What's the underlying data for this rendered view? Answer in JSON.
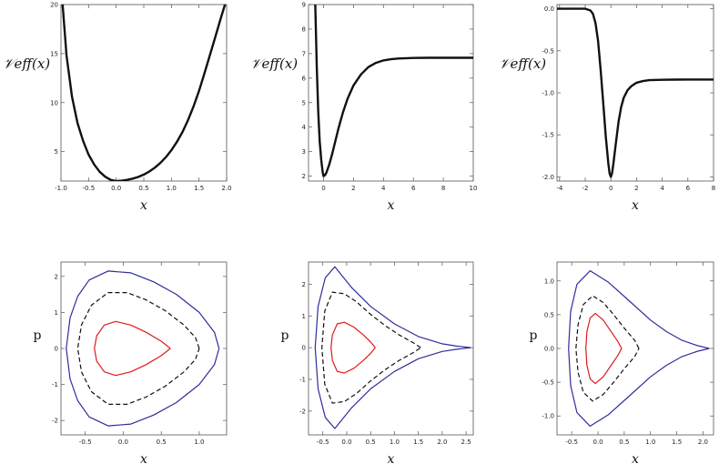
{
  "chart_data": [
    {
      "type": "line",
      "ylabel": "𝒱eff(x)",
      "xlabel": "x",
      "xlim": [
        -1.0,
        2.0
      ],
      "ylim": [
        2.0,
        20.0
      ],
      "xticks": [
        "-1.0",
        "-0.5",
        "0.0",
        "0.5",
        "1.0",
        "1.5",
        "2.0"
      ],
      "xtick_values": [
        -1.0,
        -0.5,
        0.0,
        0.5,
        1.0,
        1.5,
        2.0
      ],
      "yticks": [
        "5",
        "10",
        "15",
        "20"
      ],
      "ytick_values": [
        5,
        10,
        15,
        20
      ],
      "series": [
        {
          "color": "#111111",
          "x": [
            -0.97,
            -0.9,
            -0.8,
            -0.7,
            -0.6,
            -0.5,
            -0.4,
            -0.3,
            -0.2,
            -0.1,
            0.0,
            0.1,
            0.2,
            0.3,
            0.4,
            0.5,
            0.6,
            0.7,
            0.8,
            0.9,
            1.0,
            1.1,
            1.2,
            1.3,
            1.4,
            1.5,
            1.6,
            1.7,
            1.8,
            1.9,
            1.97
          ],
          "y": [
            20.0,
            14.8,
            10.6,
            7.9,
            6.1,
            4.7,
            3.7,
            2.95,
            2.45,
            2.12,
            2.0,
            2.04,
            2.12,
            2.25,
            2.42,
            2.66,
            2.97,
            3.36,
            3.85,
            4.44,
            5.15,
            6.0,
            7.0,
            8.2,
            9.6,
            11.2,
            13.0,
            14.9,
            16.8,
            18.7,
            20.0
          ]
        }
      ]
    },
    {
      "type": "line",
      "ylabel": "𝒱eff(x)",
      "xlabel": "x",
      "xlim": [
        -1.0,
        10.0
      ],
      "ylim": [
        1.8,
        9.0
      ],
      "xticks": [
        "0",
        "2",
        "4",
        "6",
        "8",
        "10"
      ],
      "xtick_values": [
        0,
        2,
        4,
        6,
        8,
        10
      ],
      "yticks": [
        "2",
        "3",
        "4",
        "5",
        "6",
        "7",
        "8",
        "9"
      ],
      "ytick_values": [
        2,
        3,
        4,
        5,
        6,
        7,
        8,
        9
      ],
      "series": [
        {
          "color": "#111111",
          "x": [
            -0.55,
            -0.45,
            -0.35,
            -0.25,
            -0.15,
            -0.05,
            0.0,
            0.1,
            0.2,
            0.4,
            0.6,
            0.8,
            1.0,
            1.3,
            1.6,
            2.0,
            2.5,
            3.0,
            3.5,
            4.0,
            4.5,
            5.0,
            6.0,
            7.0,
            8.0,
            9.0,
            10.0
          ],
          "y": [
            9.0,
            6.4,
            4.6,
            3.4,
            2.65,
            2.15,
            2.0,
            2.04,
            2.15,
            2.5,
            2.95,
            3.45,
            3.95,
            4.6,
            5.15,
            5.7,
            6.15,
            6.45,
            6.62,
            6.72,
            6.77,
            6.8,
            6.82,
            6.83,
            6.83,
            6.83,
            6.83
          ]
        }
      ]
    },
    {
      "type": "line",
      "ylabel": "𝒱eff(x)",
      "xlabel": "x",
      "xlim": [
        -4.2,
        8.0
      ],
      "ylim": [
        -2.05,
        0.05
      ],
      "xticks": [
        "-4",
        "-2",
        "0",
        "2",
        "4",
        "6",
        "8"
      ],
      "xtick_values": [
        -4,
        -2,
        0,
        2,
        4,
        6,
        8
      ],
      "yticks": [
        "0.0",
        "-0.5",
        "-1.0",
        "-1.5",
        "-2.0"
      ],
      "ytick_values": [
        0.0,
        -0.5,
        -1.0,
        -1.5,
        -2.0
      ],
      "series": [
        {
          "color": "#111111",
          "x": [
            -4.2,
            -3.0,
            -2.0,
            -1.6,
            -1.4,
            -1.2,
            -1.0,
            -0.8,
            -0.6,
            -0.4,
            -0.2,
            -0.1,
            0.0,
            0.1,
            0.2,
            0.4,
            0.6,
            0.8,
            1.0,
            1.3,
            1.6,
            2.0,
            2.5,
            3.0,
            4.0,
            5.0,
            6.0,
            7.0,
            8.0
          ],
          "y": [
            0.0,
            0.0,
            0.0,
            -0.02,
            -0.06,
            -0.17,
            -0.38,
            -0.72,
            -1.12,
            -1.52,
            -1.84,
            -1.96,
            -2.0,
            -1.95,
            -1.84,
            -1.58,
            -1.34,
            -1.17,
            -1.06,
            -0.97,
            -0.92,
            -0.88,
            -0.86,
            -0.85,
            -0.845,
            -0.843,
            -0.842,
            -0.842,
            -0.842
          ]
        }
      ]
    },
    {
      "type": "line",
      "ylabel": "p",
      "xlabel": "x",
      "xlim": [
        -0.82,
        1.36
      ],
      "ylim": [
        -2.4,
        2.4
      ],
      "xticks": [
        "-0.5",
        "0.0",
        "0.5",
        "1.0"
      ],
      "xtick_values": [
        -0.5,
        0.0,
        0.5,
        1.0
      ],
      "yticks": [
        "2",
        "1",
        "0",
        "-1",
        "-2"
      ],
      "ytick_values": [
        2,
        1,
        0,
        -1,
        -2
      ],
      "series": [
        {
          "color": "#2e2e9a",
          "style": "solid",
          "x": [
            1.26,
            1.2,
            1.0,
            0.7,
            0.4,
            0.1,
            -0.2,
            -0.45,
            -0.6,
            -0.7,
            -0.75,
            -0.7,
            -0.6,
            -0.45,
            -0.2,
            0.1,
            0.4,
            0.7,
            1.0,
            1.2,
            1.26
          ],
          "y": [
            0.0,
            0.45,
            1.0,
            1.5,
            1.85,
            2.1,
            2.15,
            1.9,
            1.45,
            0.85,
            0.0,
            -0.85,
            -1.45,
            -1.9,
            -2.15,
            -2.1,
            -1.85,
            -1.5,
            -1.0,
            -0.45,
            0.0
          ]
        },
        {
          "color": "#111111",
          "style": "dashed",
          "x": [
            1.0,
            0.95,
            0.8,
            0.55,
            0.3,
            0.05,
            -0.2,
            -0.42,
            -0.55,
            -0.6,
            -0.55,
            -0.42,
            -0.2,
            0.05,
            0.3,
            0.55,
            0.8,
            0.95,
            1.0
          ],
          "y": [
            0.0,
            0.3,
            0.65,
            1.05,
            1.35,
            1.55,
            1.55,
            1.2,
            0.65,
            0.0,
            -0.65,
            -1.2,
            -1.55,
            -1.55,
            -1.35,
            -1.05,
            -0.65,
            -0.3,
            0.0
          ]
        },
        {
          "color": "#e0191c",
          "style": "solid",
          "x": [
            0.62,
            0.5,
            0.3,
            0.1,
            -0.1,
            -0.25,
            -0.35,
            -0.38,
            -0.35,
            -0.25,
            -0.1,
            0.1,
            0.3,
            0.5,
            0.62
          ],
          "y": [
            0.0,
            0.2,
            0.45,
            0.65,
            0.75,
            0.65,
            0.35,
            0.0,
            -0.35,
            -0.65,
            -0.75,
            -0.65,
            -0.45,
            -0.2,
            0.0
          ]
        }
      ]
    },
    {
      "type": "line",
      "ylabel": "p",
      "xlabel": "x",
      "xlim": [
        -0.8,
        2.65
      ],
      "ylim": [
        -2.75,
        2.7
      ],
      "xticks": [
        "-0.5",
        "0.0",
        "0.5",
        "1.0",
        "1.5",
        "2.0",
        "2.5"
      ],
      "xtick_values": [
        -0.5,
        0.0,
        0.5,
        1.0,
        1.5,
        2.0,
        2.5
      ],
      "yticks": [
        "2",
        "1",
        "0",
        "-1",
        "-2"
      ],
      "ytick_values": [
        2,
        1,
        0,
        -1,
        -2
      ],
      "series": [
        {
          "color": "#2e2e9a",
          "style": "solid",
          "x": [
            2.6,
            2.3,
            2.0,
            1.5,
            1.0,
            0.5,
            0.1,
            -0.25,
            -0.45,
            -0.6,
            -0.66,
            -0.6,
            -0.45,
            -0.25,
            0.1,
            0.5,
            1.0,
            1.5,
            2.0,
            2.3,
            2.6
          ],
          "y": [
            0.0,
            0.05,
            0.12,
            0.35,
            0.75,
            1.3,
            1.9,
            2.55,
            2.2,
            1.3,
            0.0,
            -1.3,
            -2.2,
            -2.55,
            -1.9,
            -1.3,
            -0.75,
            -0.35,
            -0.12,
            -0.05,
            0.0
          ]
        },
        {
          "color": "#111111",
          "style": "dashed",
          "x": [
            1.55,
            1.4,
            1.1,
            0.8,
            0.5,
            0.2,
            -0.05,
            -0.3,
            -0.46,
            -0.52,
            -0.46,
            -0.3,
            -0.05,
            0.2,
            0.5,
            0.8,
            1.1,
            1.4,
            1.55
          ],
          "y": [
            0.0,
            0.15,
            0.4,
            0.7,
            1.05,
            1.45,
            1.7,
            1.75,
            1.15,
            0.0,
            -1.15,
            -1.75,
            -1.7,
            -1.45,
            -1.05,
            -0.7,
            -0.4,
            -0.15,
            0.0
          ]
        },
        {
          "color": "#e0191c",
          "style": "solid",
          "x": [
            0.6,
            0.5,
            0.35,
            0.15,
            -0.05,
            -0.2,
            -0.3,
            -0.33,
            -0.3,
            -0.2,
            -0.05,
            0.15,
            0.35,
            0.5,
            0.6
          ],
          "y": [
            0.0,
            0.18,
            0.4,
            0.65,
            0.8,
            0.75,
            0.4,
            0.0,
            -0.4,
            -0.75,
            -0.8,
            -0.65,
            -0.4,
            -0.18,
            0.0
          ]
        }
      ]
    },
    {
      "type": "line",
      "ylabel": "p",
      "xlabel": "x",
      "xlim": [
        -0.78,
        2.2
      ],
      "ylim": [
        -1.28,
        1.28
      ],
      "xticks": [
        "-0.5",
        "0.0",
        "0.5",
        "1.0",
        "1.5",
        "2.0"
      ],
      "xtick_values": [
        -0.5,
        0.0,
        0.5,
        1.0,
        1.5,
        2.0
      ],
      "yticks": [
        "1.0",
        "0.5",
        "0.0",
        "-0.5",
        "-1.0"
      ],
      "ytick_values": [
        1.0,
        0.5,
        0.0,
        -0.5,
        -1.0
      ],
      "series": [
        {
          "color": "#2e2e9a",
          "style": "solid",
          "x": [
            2.12,
            1.9,
            1.6,
            1.3,
            1.0,
            0.6,
            0.2,
            -0.15,
            -0.4,
            -0.52,
            -0.56,
            -0.52,
            -0.4,
            -0.15,
            0.2,
            0.6,
            1.0,
            1.3,
            1.6,
            1.9,
            2.12
          ],
          "y": [
            0.0,
            0.04,
            0.12,
            0.25,
            0.42,
            0.7,
            0.98,
            1.15,
            0.95,
            0.55,
            0.0,
            -0.55,
            -0.95,
            -1.15,
            -0.98,
            -0.7,
            -0.42,
            -0.25,
            -0.12,
            -0.04,
            0.0
          ]
        },
        {
          "color": "#111111",
          "style": "dashed",
          "x": [
            0.78,
            0.7,
            0.5,
            0.3,
            0.1,
            -0.1,
            -0.28,
            -0.38,
            -0.42,
            -0.38,
            -0.28,
            -0.1,
            0.1,
            0.3,
            0.5,
            0.7,
            0.78
          ],
          "y": [
            0.0,
            0.12,
            0.3,
            0.5,
            0.68,
            0.78,
            0.65,
            0.35,
            0.0,
            -0.35,
            -0.65,
            -0.78,
            -0.68,
            -0.5,
            -0.3,
            -0.12,
            0.0
          ]
        },
        {
          "color": "#e0191c",
          "style": "solid",
          "x": [
            0.45,
            0.38,
            0.25,
            0.1,
            -0.05,
            -0.15,
            -0.21,
            -0.23,
            -0.21,
            -0.15,
            -0.05,
            0.1,
            0.25,
            0.38,
            0.45
          ],
          "y": [
            0.0,
            0.1,
            0.25,
            0.42,
            0.52,
            0.45,
            0.25,
            0.0,
            -0.25,
            -0.45,
            -0.52,
            -0.42,
            -0.25,
            -0.1,
            0.0
          ]
        }
      ]
    }
  ]
}
